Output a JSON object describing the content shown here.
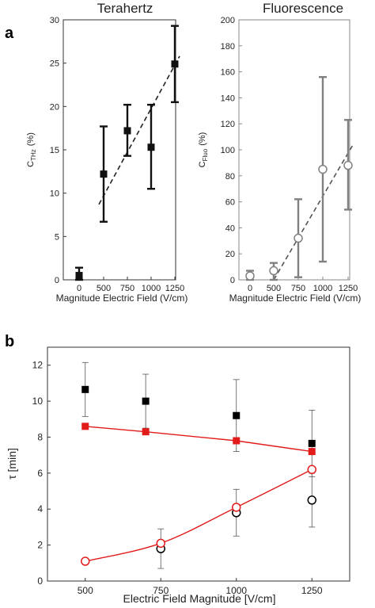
{
  "chart_data": [
    {
      "panel_label": "a",
      "type": "scatter",
      "title": "Terahertz",
      "xlabel": "Magnitude Electric Field (V/cm)",
      "ylabel_main": "C",
      "ylabel_sub": "THz",
      "ylabel_unit": "(%)",
      "x": [
        "0",
        "500",
        "750",
        "1000",
        "1250"
      ],
      "values": [
        0.5,
        12.2,
        17.2,
        15.3,
        24.9
      ],
      "err_low": [
        0,
        6.7,
        14.3,
        10.5,
        20.5
      ],
      "err_high": [
        1.4,
        17.7,
        20.2,
        20.2,
        29.3
      ],
      "ylim": [
        0,
        30
      ],
      "yticks": [
        0,
        5,
        10,
        15,
        20,
        25,
        30
      ],
      "fit_line": {
        "x_start": 450,
        "y_start": 8.7,
        "x_end": 1300,
        "y_end": 25.8
      },
      "marker": "filled-square",
      "color": "#111111"
    },
    {
      "type": "scatter",
      "title": "Fluorescence",
      "xlabel": "Magnitude Electric Field (V/cm)",
      "ylabel_main": "C",
      "ylabel_sub": "Fluo",
      "ylabel_unit": "(%)",
      "x": [
        "0",
        "500",
        "750",
        "1000",
        "1250"
      ],
      "values": [
        3,
        7,
        32,
        85,
        88
      ],
      "err_low": [
        0,
        0,
        2,
        14,
        54
      ],
      "err_high": [
        7,
        13,
        62,
        156,
        123
      ],
      "ylim": [
        0,
        200
      ],
      "yticks": [
        0,
        20,
        40,
        60,
        80,
        100,
        120,
        140,
        160,
        180,
        200
      ],
      "fit_line": {
        "x_start": 500,
        "y_start": 0,
        "x_end": 1300,
        "y_end": 104
      },
      "marker": "open-circle",
      "color": "#808080"
    },
    {
      "panel_label": "b",
      "type": "scatter",
      "xlabel": "Electric Field Magnitude [V/cm]",
      "ylabel": "τ [min]",
      "xlim": [
        375,
        1375
      ],
      "xticks": [
        500,
        750,
        1000,
        1250
      ],
      "ylim": [
        0,
        13
      ],
      "yticks": [
        0,
        2,
        4,
        6,
        8,
        10,
        12
      ],
      "series": [
        {
          "marker": "filled-square",
          "color": "#000000",
          "x": [
            500,
            700,
            1000,
            1250
          ],
          "values": [
            10.65,
            10.0,
            9.2,
            7.65
          ],
          "err_low": [
            9.15,
            8.5,
            7.2,
            5.8
          ],
          "err_high": [
            12.15,
            11.5,
            11.2,
            9.5
          ]
        },
        {
          "marker": "filled-square",
          "color": "#e21b1b",
          "line": true,
          "x": [
            500,
            700,
            1000,
            1250
          ],
          "values": [
            8.6,
            8.3,
            7.8,
            7.2
          ]
        },
        {
          "marker": "open-circle",
          "color": "#000000",
          "x": [
            750,
            1000,
            1250
          ],
          "values": [
            1.8,
            3.8,
            4.5
          ],
          "err_low": [
            0.7,
            2.5,
            3.0
          ],
          "err_high": [
            2.9,
            5.1,
            6.0
          ]
        },
        {
          "marker": "open-circle",
          "color": "#e21b1b",
          "line": true,
          "smooth": true,
          "x": [
            500,
            750,
            1000,
            1250
          ],
          "values": [
            1.1,
            2.1,
            4.1,
            6.2
          ]
        }
      ]
    }
  ]
}
